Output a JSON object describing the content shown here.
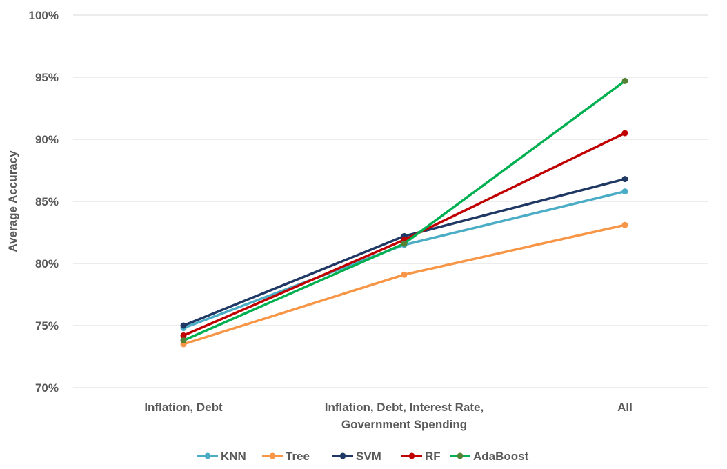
{
  "chart_data": {
    "type": "line",
    "title": "",
    "ylabel": "Average Accuracy",
    "xlabel": "",
    "ylim": [
      70,
      100
    ],
    "yticks": [
      70,
      75,
      80,
      85,
      90,
      95,
      100
    ],
    "ytick_labels": [
      "70%",
      "75%",
      "80%",
      "85%",
      "90%",
      "95%",
      "100%"
    ],
    "grid": true,
    "legend_position": "bottom",
    "categories": [
      [
        "Inflation, Debt"
      ],
      [
        "Inflation, Debt, Interest Rate,",
        "Government   Spending"
      ],
      [
        "All"
      ]
    ],
    "series": [
      {
        "name": "KNN",
        "color": "#4BACC6",
        "values": [
          74.8,
          81.5,
          85.8
        ]
      },
      {
        "name": "Tree",
        "color": "#F79646",
        "values": [
          73.5,
          79.1,
          83.1
        ]
      },
      {
        "name": "SVM",
        "color": "#1F3864",
        "values": [
          75.0,
          82.2,
          86.8
        ]
      },
      {
        "name": "RF",
        "color": "#C00000",
        "values": [
          74.2,
          81.9,
          90.5
        ]
      },
      {
        "name": "AdaBoost",
        "color": "#00B050",
        "marker_color": "#548235",
        "values": [
          73.8,
          81.6,
          94.7
        ]
      }
    ]
  }
}
